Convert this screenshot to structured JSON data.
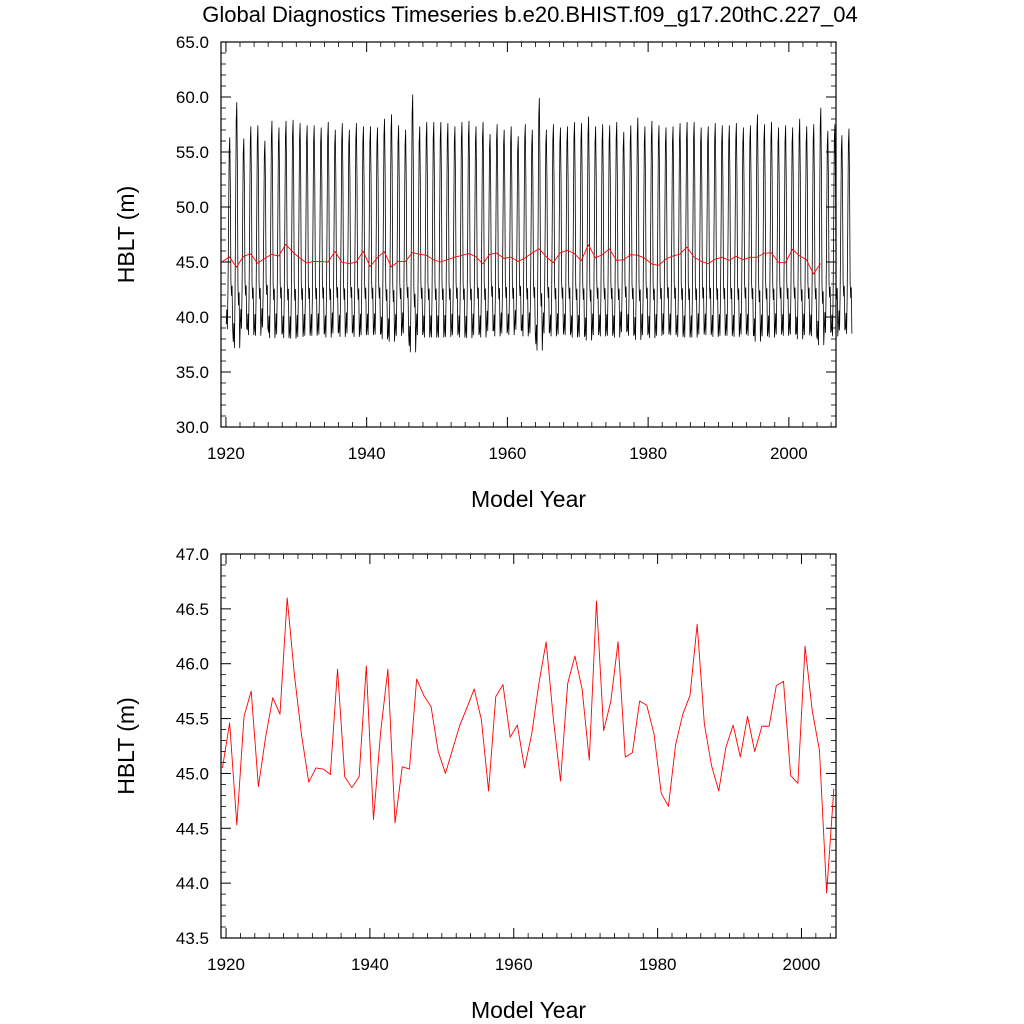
{
  "title": "Global Diagnostics Timeseries b.e20.BHIST.f09_g17.20thC.227_04",
  "chart_data": [
    {
      "type": "line",
      "xlabel": "Model Year",
      "ylabel": "HBLT (m)",
      "xlim": [
        1919.3,
        2006.7
      ],
      "ylim": [
        30.0,
        65.0
      ],
      "x_ticks": [
        1920,
        1940,
        1960,
        1980,
        2000
      ],
      "x_tick_labels": [
        "1920",
        "1940",
        "1960",
        "1980",
        "2000"
      ],
      "y_ticks": [
        30,
        35,
        40,
        45,
        50,
        55,
        60,
        65
      ],
      "y_tick_labels": [
        "30.0",
        "35.0",
        "40.0",
        "45.0",
        "50.0",
        "55.0",
        "60.0",
        "65.0"
      ],
      "grid": false,
      "series": [
        {
          "color": "#000000",
          "resolution": "monthly",
          "start_year": 1920,
          "monthly_climatology_offsets": [
            -6.5,
            -5.0,
            -7.0,
            -3.0,
            4.0,
            11.5,
            13.0,
            8.0,
            -2.0,
            -3.5,
            -2.5,
            -7.0
          ],
          "yearly_july_peaks": [
            56.3,
            59.5,
            56.2,
            57.3,
            57.4,
            56.0,
            57.8,
            57.2,
            57.8,
            57.9,
            57.6,
            57.4,
            57.4,
            57.2,
            57.7,
            57.0,
            57.6,
            57.0,
            57.6,
            57.3,
            57.3,
            57.2,
            58.0,
            58.4,
            57.4,
            57.0,
            60.2,
            57.3,
            57.7,
            57.7,
            57.7,
            57.6,
            57.3,
            57.7,
            57.8,
            57.3,
            57.7,
            56.6,
            57.5,
            57.0,
            57.3,
            56.4,
            57.5,
            57.0,
            59.9,
            57.0,
            57.5,
            57.2,
            57.3,
            57.7,
            57.6,
            58.2,
            57.3,
            57.5,
            57.4,
            57.7,
            56.8,
            57.4,
            58.1,
            57.3,
            57.8,
            57.4,
            57.2,
            57.3,
            57.6,
            57.7,
            57.7,
            57.2,
            57.3,
            57.6,
            57.4,
            57.4,
            57.6,
            57.2,
            57.4,
            58.4,
            57.5,
            57.7,
            57.2,
            57.4,
            57.2,
            58.0,
            57.3,
            57.5,
            59.0,
            56.9,
            57.5,
            56.5,
            57.1
          ]
        },
        {
          "color": "#ff0000",
          "resolution": "annual",
          "ref": "annual_mean"
        }
      ]
    },
    {
      "type": "line",
      "xlabel": "Model Year",
      "ylabel": "HBLT (m)",
      "xlim": [
        1919.3,
        2004.8
      ],
      "ylim": [
        43.5,
        47.0
      ],
      "x_ticks": [
        1920,
        1940,
        1960,
        1980,
        2000
      ],
      "x_tick_labels": [
        "1920",
        "1940",
        "1960",
        "1980",
        "2000"
      ],
      "y_ticks": [
        43.5,
        44.0,
        44.5,
        45.0,
        45.5,
        46.0,
        46.5,
        47.0
      ],
      "y_tick_labels": [
        "43.5",
        "44.0",
        "44.5",
        "45.0",
        "45.5",
        "46.0",
        "46.5",
        "47.0"
      ],
      "grid": false,
      "series": [
        {
          "color": "#ff0000",
          "resolution": "annual",
          "ref": "annual_mean"
        }
      ]
    }
  ],
  "annual_mean": {
    "x": [
      1919.5,
      1920.5,
      1921.5,
      1922.5,
      1923.5,
      1924.5,
      1925.5,
      1926.5,
      1927.5,
      1928.5,
      1929.5,
      1930.5,
      1931.5,
      1932.5,
      1933.5,
      1934.5,
      1935.5,
      1936.5,
      1937.5,
      1938.5,
      1939.5,
      1940.5,
      1941.5,
      1942.5,
      1943.5,
      1944.5,
      1945.5,
      1946.5,
      1947.5,
      1948.5,
      1949.5,
      1950.5,
      1951.5,
      1952.5,
      1953.5,
      1954.5,
      1955.5,
      1956.5,
      1957.5,
      1958.5,
      1959.5,
      1960.5,
      1961.5,
      1962.5,
      1963.5,
      1964.5,
      1965.5,
      1966.5,
      1967.5,
      1968.5,
      1969.5,
      1970.5,
      1971.5,
      1972.5,
      1973.5,
      1974.5,
      1975.5,
      1976.5,
      1977.5,
      1978.5,
      1979.5,
      1980.5,
      1981.5,
      1982.5,
      1983.5,
      1984.5,
      1985.5,
      1986.5,
      1987.5,
      1988.5,
      1989.5,
      1990.5,
      1991.5,
      1992.5,
      1993.5,
      1994.5,
      1995.5,
      1996.5,
      1997.5,
      1998.5,
      1999.5,
      2000.5,
      2001.5,
      2002.5,
      2003.5,
      2004.5
    ],
    "y": [
      45.05,
      45.46,
      44.53,
      45.52,
      45.75,
      44.88,
      45.33,
      45.69,
      45.54,
      46.6,
      45.9,
      45.35,
      44.92,
      45.05,
      45.04,
      44.99,
      45.95,
      44.97,
      44.87,
      44.97,
      45.98,
      44.58,
      45.38,
      45.95,
      44.55,
      45.06,
      45.04,
      45.86,
      45.71,
      45.61,
      45.2,
      45.0,
      45.22,
      45.44,
      45.6,
      45.77,
      45.49,
      44.84,
      45.7,
      45.81,
      45.33,
      45.44,
      45.05,
      45.36,
      45.82,
      46.2,
      45.5,
      44.93,
      45.82,
      46.07,
      45.77,
      45.12,
      46.57,
      45.39,
      45.66,
      46.2,
      45.15,
      45.19,
      45.66,
      45.62,
      45.36,
      44.82,
      44.7,
      45.26,
      45.54,
      45.71,
      46.36,
      45.45,
      45.07,
      44.84,
      45.24,
      45.44,
      45.15,
      45.52,
      45.2,
      45.43,
      45.43,
      45.8,
      45.84,
      44.98,
      44.91,
      46.16,
      45.57,
      45.21,
      43.91,
      44.86
    ]
  }
}
